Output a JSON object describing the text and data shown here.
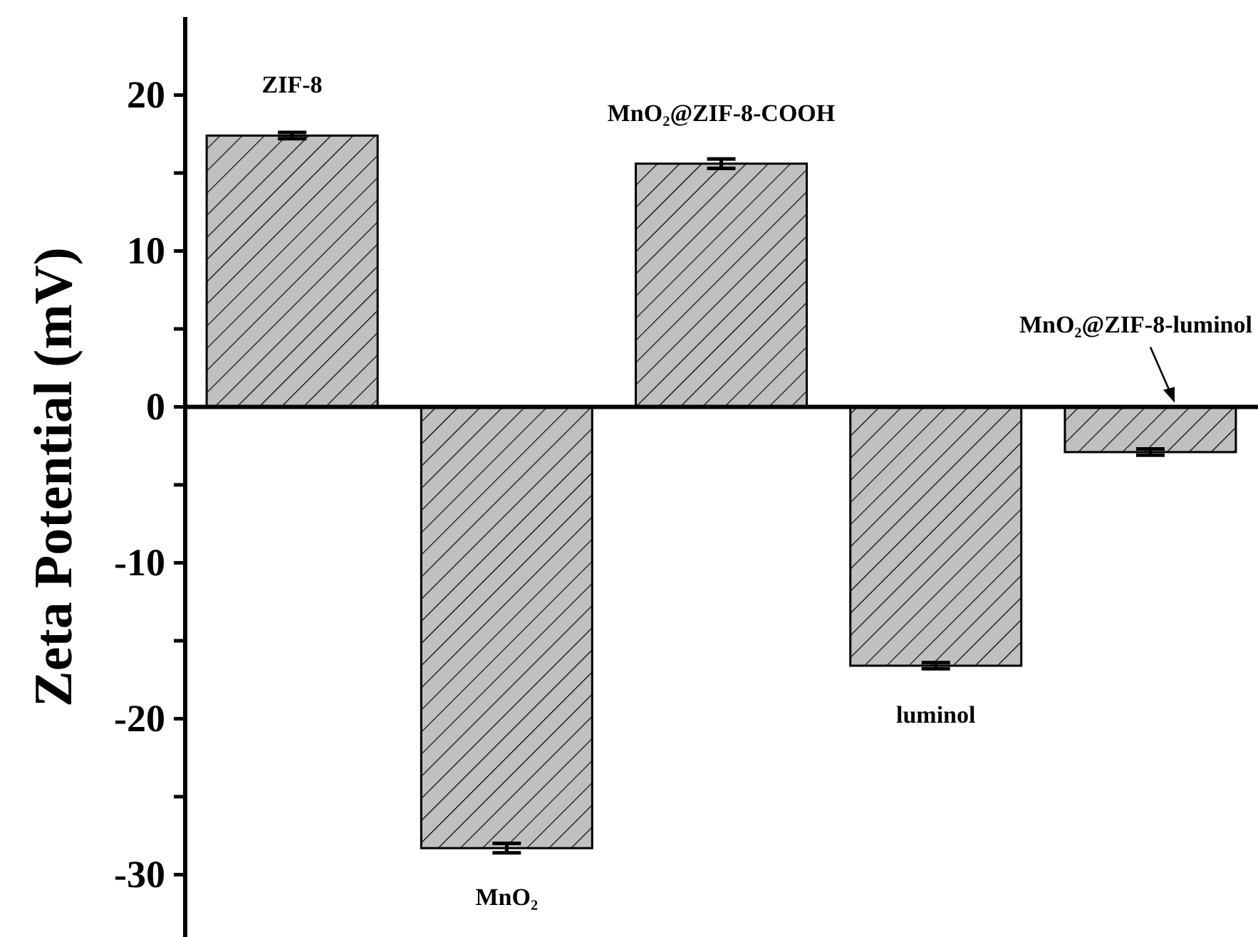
{
  "chart_data": {
    "type": "bar",
    "ylabel": "Zeta Potential (mV)",
    "categories": [
      "ZIF-8",
      "MnO₂",
      "MnO₂@ZIF-8-COOH",
      "luminol",
      "MnO₂@ZIF-8-luminol"
    ],
    "values": [
      17.4,
      -28.3,
      15.6,
      -16.6,
      -2.9
    ],
    "errors": [
      0.2,
      0.3,
      0.3,
      0.2,
      0.2
    ],
    "color": "#c0c0c0",
    "ylim": [
      -34,
      25
    ],
    "yticks": [
      {
        "value": -30,
        "label": "-30"
      },
      {
        "value": -25,
        "label": null
      },
      {
        "value": -20,
        "label": "-20"
      },
      {
        "value": -15,
        "label": null
      },
      {
        "value": -10,
        "label": "-10"
      },
      {
        "value": -5,
        "label": null
      },
      0,
      {
        "value": 5,
        "label": null
      },
      10,
      {
        "value": 15,
        "label": null
      },
      20
    ],
    "ref_lines": [
      {
        "axis": "y",
        "value": 0
      }
    ],
    "grid": false
  }
}
